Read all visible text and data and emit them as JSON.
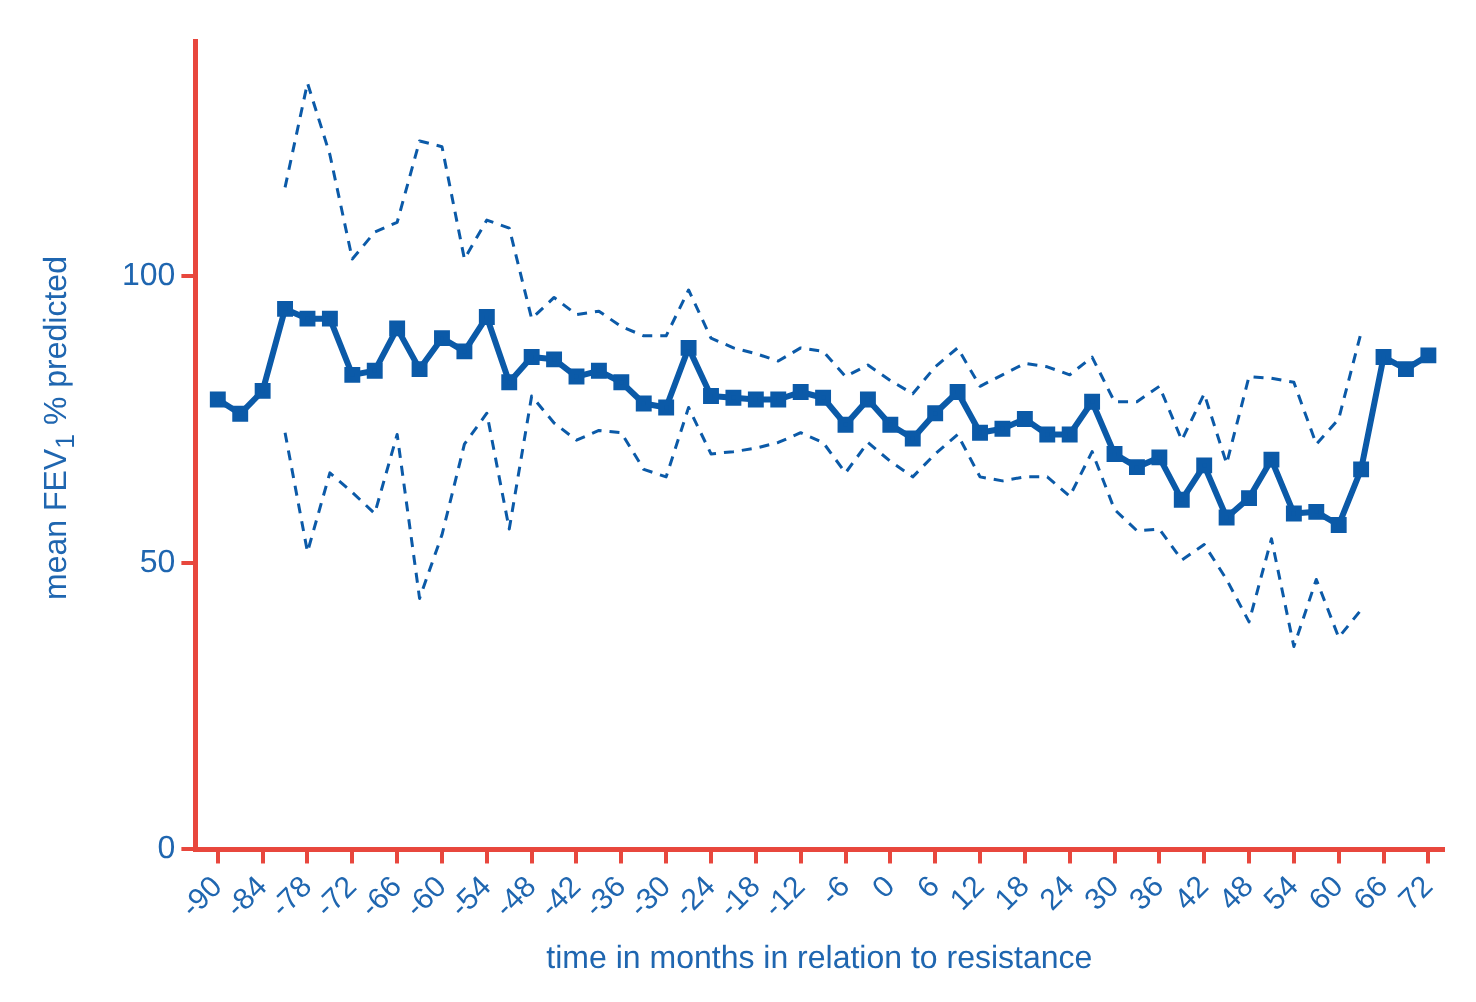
{
  "chart_data": {
    "type": "line",
    "xlabel": "time in months in relation to resistance",
    "ylabel": "mean FEV$_{1}$ % predicted",
    "x": [
      -90,
      -87,
      -84,
      -81,
      -78,
      -75,
      -72,
      -69,
      -66,
      -63,
      -60,
      -57,
      -54,
      -51,
      -48,
      -45,
      -42,
      -39,
      -36,
      -33,
      -30,
      -27,
      -24,
      -21,
      -18,
      -15,
      -12,
      -9,
      -6,
      -3,
      0,
      3,
      6,
      9,
      12,
      15,
      18,
      21,
      24,
      27,
      30,
      33,
      36,
      39,
      42,
      45,
      48,
      51,
      54,
      57,
      60,
      63,
      66,
      69,
      72
    ],
    "series": [
      {
        "color": "#0b5aa8",
        "marker": "square",
        "line_style": "solid",
        "values": [
          78.5,
          76,
          80,
          94.3,
          92.6,
          92.6,
          82.8,
          83.5,
          90.9,
          83.8,
          89.2,
          86.9,
          92.9,
          81.5,
          85.9,
          85.5,
          82.5,
          83.5,
          81.5,
          77.8,
          77.1,
          87.5,
          79.1,
          78.8,
          78.5,
          78.5,
          79.8,
          78.8,
          74.1,
          78.5,
          74.1,
          71.7,
          76.1,
          79.8,
          72.7,
          73.4,
          75.1,
          72.4,
          72.4,
          78.1,
          69,
          66.7,
          68.4,
          61,
          67,
          57.9,
          61.3,
          68,
          58.6,
          58.9,
          56.6,
          66.3,
          85.9,
          83.8,
          86.2
        ]
      },
      {
        "color": "#0b5aa8",
        "marker": "none",
        "line_style": "dashed",
        "values": [
          null,
          null,
          null,
          115.5,
          133.7,
          121.2,
          103,
          107.7,
          109.4,
          123.6,
          122.6,
          103,
          109.8,
          108.4,
          92.6,
          96.3,
          93.3,
          93.9,
          91.2,
          89.6,
          89.6,
          97.6,
          89.2,
          87.5,
          86.5,
          85.2,
          87.5,
          86.9,
          82.5,
          84.5,
          81.8,
          79.5,
          84.2,
          87.5,
          80.8,
          82.8,
          84.8,
          84.2,
          82.8,
          85.9,
          78.1,
          78.1,
          80.8,
          71.4,
          79.5,
          67.3,
          82.5,
          82.2,
          81.5,
          70.7,
          75.1,
          90.2,
          null,
          null,
          null
        ]
      },
      {
        "color": "#0b5aa8",
        "marker": "none",
        "line_style": "dashed",
        "values": [
          null,
          null,
          null,
          72.7,
          51.9,
          65.7,
          62.3,
          58.6,
          72.4,
          43.8,
          54.9,
          70.7,
          76.1,
          55.9,
          79.1,
          74.4,
          71.4,
          73.1,
          72.7,
          66.3,
          65,
          77.1,
          69,
          69.4,
          70,
          71,
          72.7,
          71,
          65.7,
          71,
          67.7,
          65,
          69,
          72.4,
          65,
          64.3,
          65,
          65,
          61.6,
          69.4,
          59.3,
          55.6,
          55.9,
          50.5,
          53.2,
          47.1,
          39.7,
          54.2,
          35.4,
          47.1,
          37,
          41.8,
          null,
          null,
          null
        ]
      }
    ],
    "xlim": [
      -93,
      74
    ],
    "ylim": [
      0,
      141
    ],
    "xticks": [
      -90,
      -84,
      -78,
      -72,
      -66,
      -60,
      -54,
      -48,
      -42,
      -36,
      -30,
      -24,
      -18,
      -12,
      -6,
      0,
      6,
      12,
      18,
      24,
      30,
      36,
      42,
      48,
      54,
      60,
      66,
      72
    ],
    "yticks": [
      0,
      50,
      100
    ],
    "grid": false,
    "legend": false
  }
}
